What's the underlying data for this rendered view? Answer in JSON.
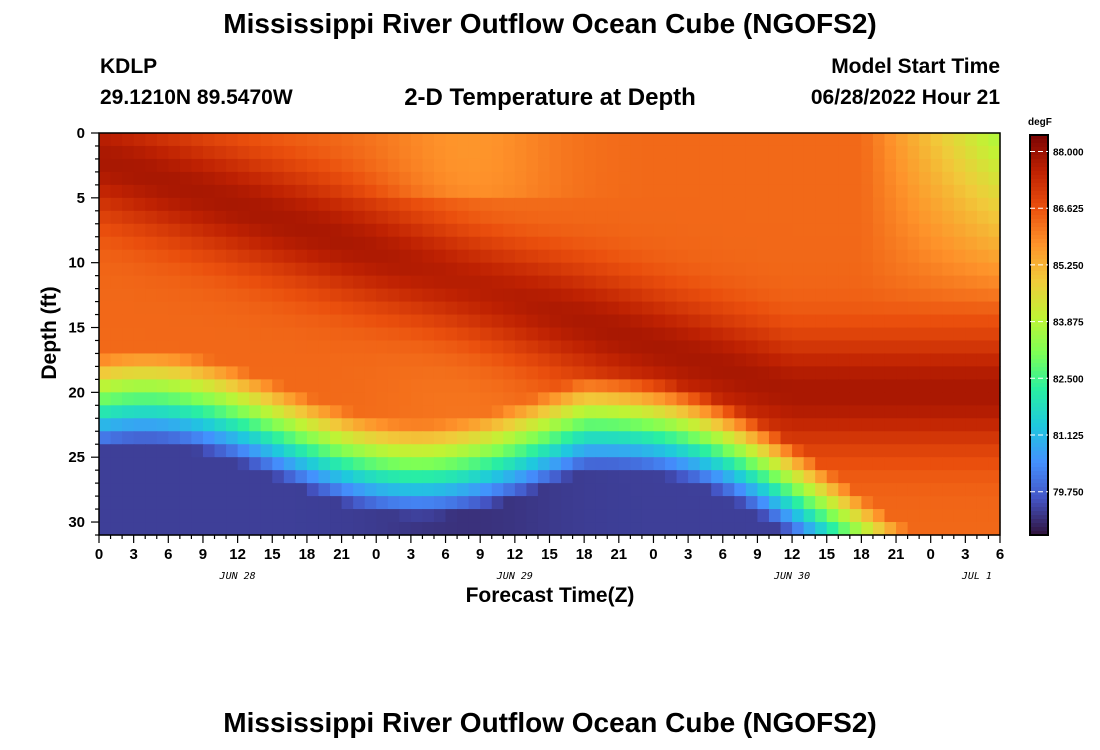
{
  "header": {
    "title": "Mississippi River Outflow Ocean Cube (NGOFS2)",
    "station": "KDLP",
    "coords": "29.1210N  89.5470W",
    "subtitle": "2-D Temperature at Depth",
    "start_label": "Model Start Time",
    "start_value": "06/28/2022 Hour 21"
  },
  "footer": {
    "title": "Mississippi River Outflow Ocean Cube (NGOFS2)"
  },
  "chart_data": {
    "type": "heatmap",
    "xlabel": "Forecast Time(Z)",
    "ylabel": "Depth (ft)",
    "colorbar_unit": "degF",
    "x_ticks": [
      "0",
      "3",
      "6",
      "9",
      "12",
      "15",
      "18",
      "21",
      "0",
      "3",
      "6",
      "9",
      "12",
      "15",
      "18",
      "21",
      "0",
      "3",
      "6",
      "9",
      "12",
      "15",
      "18",
      "21",
      "0",
      "3",
      "6"
    ],
    "day_labels": [
      {
        "label": "JUN 28",
        "hour": 12
      },
      {
        "label": "JUN 29",
        "hour": 36
      },
      {
        "label": "JUN 30",
        "hour": 60
      },
      {
        "label": "JUL 1",
        "hour": 76
      }
    ],
    "x_range_hours": [
      0,
      78
    ],
    "y_ticks": [
      0,
      5,
      10,
      15,
      20,
      25,
      30
    ],
    "y_range_ft": [
      0,
      31
    ],
    "colorbar_ticks": [
      "88.000",
      "86.625",
      "85.250",
      "83.875",
      "82.500",
      "81.125",
      "79.750"
    ],
    "colorbar_range_degF": [
      78.7,
      88.4
    ],
    "colormap": [
      "#30123b",
      "#4454c4",
      "#4490fe",
      "#1fc8de",
      "#29efa2",
      "#7dff56",
      "#c1f334",
      "#f1ca3a",
      "#fe922a",
      "#ea4f0d",
      "#be2102",
      "#7a0403"
    ],
    "summary": "Warm water (85-88 degF) in the upper ~17 ft across the whole forecast; a warmest core deepens from ~2 ft (Jun 28 09Z) to ~20 ft (Jun 30 15Z); cooler water (79-83 degF) below ~20 ft on Jun 28-29, retreating toward the bottom by Jun 30-Jul 1."
  }
}
